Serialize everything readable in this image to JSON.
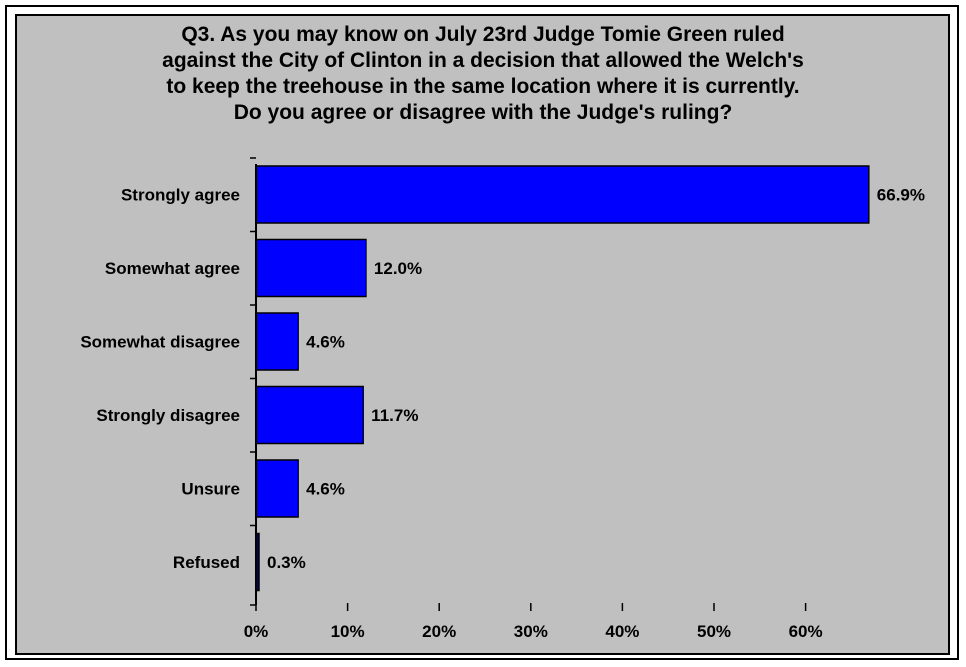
{
  "chart_data": {
    "type": "bar",
    "orientation": "horizontal",
    "title": "Q3. As you may know on July 23rd Judge Tomie Green ruled\nagainst the City of Clinton in a decision that allowed the Welch's\nto keep the treehouse in the same location where it is currently.\nDo you agree or disagree with the Judge's ruling?",
    "categories": [
      "Strongly agree",
      "Somewhat agree",
      "Somewhat disagree",
      "Strongly disagree",
      "Unsure",
      "Refused"
    ],
    "values": [
      66.9,
      12.0,
      4.6,
      11.7,
      4.6,
      0.3
    ],
    "value_labels": [
      "66.9%",
      "12.0%",
      "4.6%",
      "11.7%",
      "4.6%",
      "0.3%"
    ],
    "xlim": [
      0,
      60
    ],
    "xticks": [
      0,
      10,
      20,
      30,
      40,
      50,
      60
    ],
    "xtick_labels": [
      "0%",
      "10%",
      "20%",
      "30%",
      "40%",
      "50%",
      "60%"
    ],
    "grid": false,
    "legend": "none",
    "colors": {
      "bar": "#0000ff",
      "bar_small": "#000080",
      "background": "#c0c0c0"
    }
  }
}
